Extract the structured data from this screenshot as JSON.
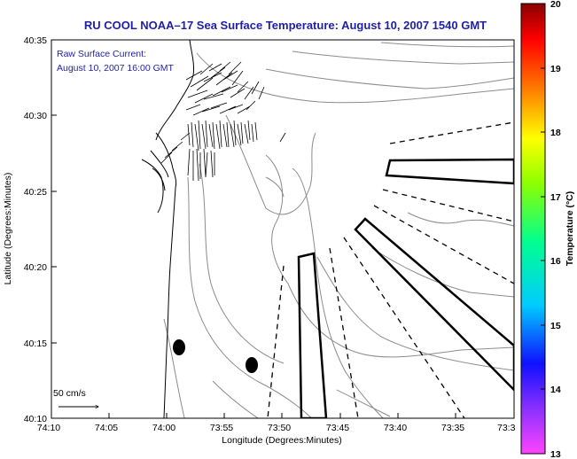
{
  "title": "RU COOL  NOAA–17  Sea Surface Temperature:  August 10, 2007 1540 GMT",
  "current_note": {
    "line1": "Raw Surface Current:",
    "line2": "August 10, 2007 16:00 GMT"
  },
  "scale_arrow_label": "50 cm/s",
  "map": {
    "xlabel": "Longitude (Degrees:Minutes)",
    "ylabel": "Latitude (Degrees:Minutes)",
    "x_ticks": [
      "74:10",
      "74:05",
      "74:00",
      "73:55",
      "73:50",
      "73:45",
      "73:40",
      "73:35",
      "73:3"
    ],
    "y_ticks": [
      "40:35",
      "40:30",
      "40:25",
      "40:20",
      "40:15",
      "40:10"
    ]
  },
  "colorbar": {
    "label": "Temperature (°C)",
    "ticks": [
      "20",
      "19",
      "18",
      "17",
      "16",
      "15",
      "14",
      "13"
    ],
    "range": [
      13,
      20
    ],
    "colors": [
      "#ff44ff",
      "#1010ff",
      "#00ccff",
      "#00ff90",
      "#ffff00",
      "#ff7000",
      "#ff0000",
      "#8a0000"
    ]
  },
  "colors": {
    "text_blue": "#1f1fa8",
    "axes": "#000000",
    "bathymetry": "#8c8c8c"
  }
}
